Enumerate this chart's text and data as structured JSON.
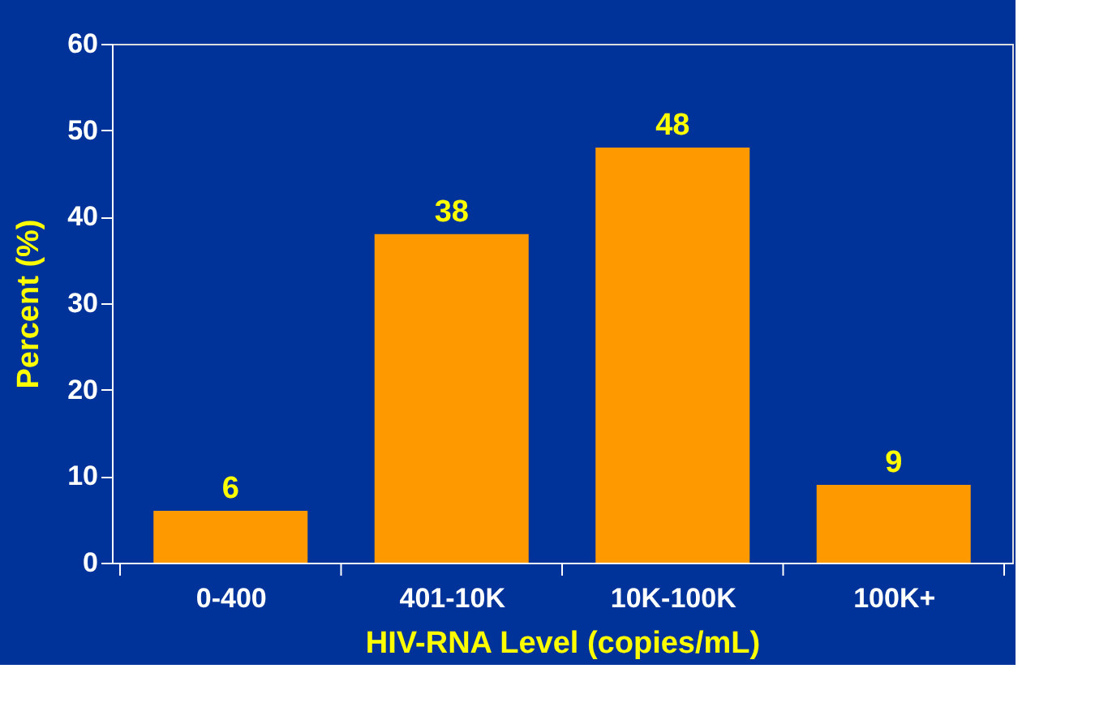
{
  "chart_data": {
    "type": "bar",
    "xlabel": "HIV-RNA Level (copies/mL)",
    "ylabel": "Percent (%)",
    "categories": [
      "0-400",
      "401-10K",
      "10K-100K",
      "100K+"
    ],
    "values": [
      6,
      38,
      48,
      9
    ],
    "color": "#ff9900",
    "ylim": [
      0,
      60
    ],
    "yticks": [
      0,
      10,
      20,
      30,
      40,
      50,
      60
    ],
    "grid": false,
    "data_labels": true
  }
}
